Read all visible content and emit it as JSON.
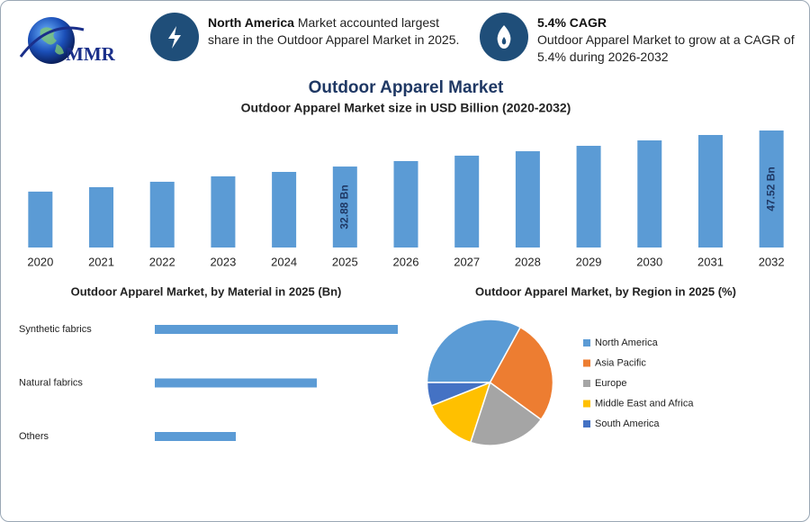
{
  "header": {
    "logo": "MMR",
    "highlights": [
      {
        "bold": "North America",
        "text": "Market accounted largest share in the Outdoor Apparel Market in 2025."
      },
      {
        "bold": "5.4% CAGR",
        "text": "Outdoor Apparel Market to grow at a CAGR of 5.4% during 2026-2032"
      }
    ]
  },
  "title": "Outdoor Apparel Market",
  "chart_data": [
    {
      "type": "bar",
      "title": "Outdoor Apparel Market size in USD Billion (2020-2032)",
      "categories": [
        "2020",
        "2021",
        "2022",
        "2023",
        "2024",
        "2025",
        "2026",
        "2027",
        "2028",
        "2029",
        "2030",
        "2031",
        "2032"
      ],
      "values": [
        22.7,
        24.5,
        26.7,
        28.9,
        30.7,
        32.88,
        35.1,
        37.3,
        39.1,
        41.3,
        43.5,
        45.7,
        47.52
      ],
      "value_labels": [
        null,
        null,
        null,
        null,
        null,
        "32.88 Bn",
        null,
        null,
        null,
        null,
        null,
        null,
        "47.52 Bn"
      ],
      "color": "#5b9bd5"
    },
    {
      "type": "hbar",
      "title": "Outdoor Apparel Market, by Material in 2025 (Bn)",
      "categories": [
        "Synthetic fabrics",
        "Natural fabrics",
        "Others"
      ],
      "values": [
        16.44,
        10.96,
        5.48
      ],
      "color": "#5b9bd5"
    },
    {
      "type": "pie",
      "title": "Outdoor Apparel Market, by Region in 2025 (%)",
      "categories": [
        "North America",
        "Asia Pacific",
        "Europe",
        "Middle East and Africa",
        "South America"
      ],
      "values": [
        33,
        27,
        20,
        14,
        6
      ],
      "colors": [
        "#5b9bd5",
        "#ed7d31",
        "#a5a5a5",
        "#ffc000",
        "#4472c4"
      ],
      "legend": "right"
    }
  ]
}
